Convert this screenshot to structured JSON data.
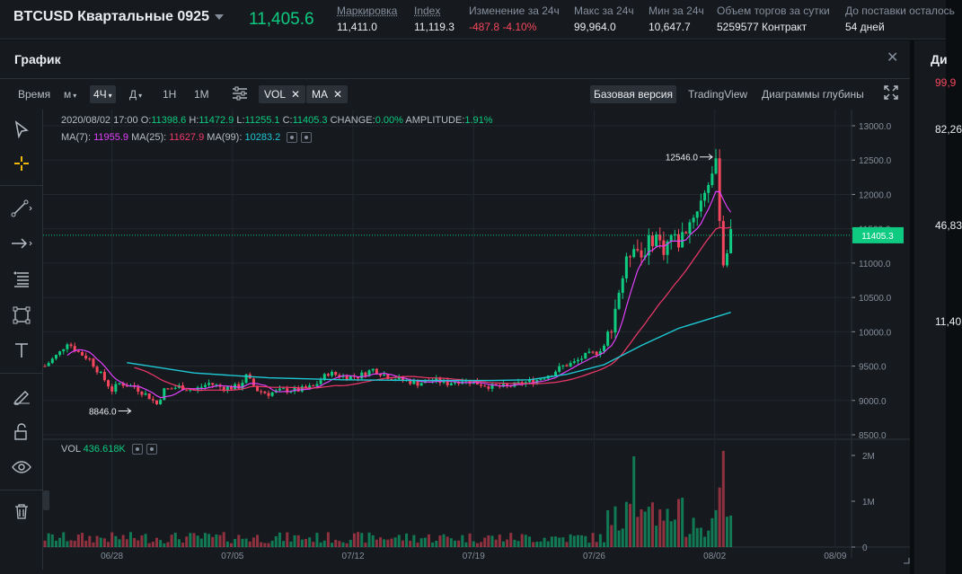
{
  "header": {
    "symbol": "BTCUSD Квартальные 0925",
    "last_price": "11,405.6",
    "stats": [
      {
        "label": "Маркировка",
        "value": "11,411.0",
        "underline": true,
        "color": "normal"
      },
      {
        "label": "Index",
        "value": "11,119.3",
        "underline": true,
        "color": "normal"
      },
      {
        "label": "Изменение за 24ч",
        "value": "-487.8 -4.10%",
        "underline": false,
        "color": "red"
      },
      {
        "label": "Макс за 24ч",
        "value": "99,964.0",
        "underline": false,
        "color": "normal"
      },
      {
        "label": "Мин за 24ч",
        "value": "10,647.7",
        "underline": false,
        "color": "normal"
      },
      {
        "label": "Объем торгов за сутки",
        "value": "5259577 Контракт",
        "underline": false,
        "color": "normal"
      },
      {
        "label": "До поставки осталось",
        "value": "54 дней",
        "underline": false,
        "color": "normal"
      }
    ]
  },
  "panel": {
    "title": "График",
    "close": "✕"
  },
  "right_panel": {
    "title": "Ди",
    "top_value": "99,9",
    "values": [
      "82,26",
      "46,83",
      "11,40"
    ]
  },
  "toolbar": {
    "time_label": "Время",
    "intervals": [
      {
        "label": "м",
        "dropdown": true,
        "active": false
      },
      {
        "label": "4Ч",
        "dropdown": true,
        "active": true
      },
      {
        "label": "Д",
        "dropdown": true,
        "active": false
      },
      {
        "label": "1Н",
        "dropdown": false,
        "active": false
      },
      {
        "label": "1М",
        "dropdown": false,
        "active": false
      }
    ],
    "indicators": [
      "VOL",
      "MA"
    ],
    "views": [
      {
        "label": "Базовая версия",
        "active": true
      },
      {
        "label": "TradingView",
        "active": false
      },
      {
        "label": "Диаграммы глубины",
        "active": false
      }
    ]
  },
  "left_tools": [
    "cursor-icon",
    "crosshair-icon",
    "trend-line-icon",
    "arrow-icon",
    "fib-lines-icon",
    "rectangle-icon",
    "text-icon",
    "magnet-pencil-icon",
    "lock-icon",
    "eye-icon",
    "trash-icon"
  ],
  "ohlc": {
    "date": "2020/08/02 17:00",
    "o_label": "O:",
    "o": "11398.6",
    "h_label": "H:",
    "h": "11472.9",
    "l_label": "L:",
    "l": "11255.1",
    "c_label": "C:",
    "c": "11405.3",
    "change_label": "CHANGE:",
    "change": "0.00%",
    "amp_label": "AMPLITUDE:",
    "amp": "1.91%"
  },
  "ma_legend": [
    {
      "label": "MA(7):",
      "value": "11955.9",
      "color": "#e040fb"
    },
    {
      "label": "MA(25):",
      "value": "11627.9",
      "color": "#f0386b"
    },
    {
      "label": "MA(99):",
      "value": "10283.2",
      "color": "#1ec8d4"
    }
  ],
  "vol_legend": {
    "label": "VOL",
    "value": "436.618K"
  },
  "colors": {
    "up": "#0ecb81",
    "down": "#f6465d",
    "ma7": "#e040fb",
    "ma25": "#f0386b",
    "ma99": "#1ec8d4",
    "axis": "#848e9c",
    "grid": "#22272e"
  },
  "chart_data": {
    "type": "candlestick",
    "x_ticks": [
      "06/28",
      "07/05",
      "07/12",
      "07/19",
      "07/26",
      "08/02",
      "08/09"
    ],
    "price_ticks": [
      "13000.0",
      "12500.0",
      "12000.0",
      "11500.0",
      "11000.0",
      "10500.0",
      "10000.0",
      "9500.0",
      "9000.0",
      "8500.0"
    ],
    "price_range": [
      8500,
      13000
    ],
    "volume_ticks": [
      "2M",
      "1M",
      "0"
    ],
    "volume_range": [
      0,
      2000000
    ],
    "current_price_label": "11405.3",
    "high_annotation": "12546.0",
    "low_annotation": "8846.0",
    "price_path": [
      [
        0,
        9500
      ],
      [
        4,
        9700
      ],
      [
        6,
        9850
      ],
      [
        9,
        9700
      ],
      [
        12,
        9600
      ],
      [
        16,
        9300
      ],
      [
        18,
        9150
      ],
      [
        20,
        9250
      ],
      [
        24,
        9200
      ],
      [
        28,
        9050
      ],
      [
        30,
        8946
      ],
      [
        32,
        9150
      ],
      [
        36,
        9200
      ],
      [
        40,
        9150
      ],
      [
        44,
        9250
      ],
      [
        48,
        9180
      ],
      [
        52,
        9200
      ],
      [
        54,
        9350
      ],
      [
        57,
        9150
      ],
      [
        60,
        9100
      ],
      [
        64,
        9150
      ],
      [
        68,
        9150
      ],
      [
        72,
        9200
      ],
      [
        76,
        9400
      ],
      [
        80,
        9350
      ],
      [
        84,
        9350
      ],
      [
        88,
        9450
      ],
      [
        92,
        9350
      ],
      [
        96,
        9300
      ],
      [
        100,
        9250
      ],
      [
        104,
        9300
      ],
      [
        108,
        9250
      ],
      [
        112,
        9300
      ],
      [
        116,
        9250
      ],
      [
        120,
        9200
      ],
      [
        124,
        9200
      ],
      [
        128,
        9250
      ],
      [
        132,
        9300
      ],
      [
        136,
        9400
      ],
      [
        139,
        9500
      ],
      [
        142,
        9550
      ],
      [
        145,
        9650
      ],
      [
        148,
        9700
      ],
      [
        150,
        9800
      ],
      [
        152,
        10100
      ],
      [
        154,
        10600
      ],
      [
        156,
        11000
      ],
      [
        158,
        11300
      ],
      [
        160,
        11100
      ],
      [
        162,
        11300
      ],
      [
        164,
        11400
      ],
      [
        166,
        11200
      ],
      [
        168,
        11400
      ],
      [
        170,
        11300
      ],
      [
        172,
        11500
      ],
      [
        174,
        11700
      ],
      [
        176,
        11900
      ],
      [
        178,
        12200
      ],
      [
        180,
        12420
      ],
      [
        182,
        11000
      ],
      [
        184,
        11405
      ]
    ],
    "ma99_path": [
      [
        22,
        9550
      ],
      [
        40,
        9400
      ],
      [
        60,
        9330
      ],
      [
        80,
        9300
      ],
      [
        100,
        9290
      ],
      [
        120,
        9290
      ],
      [
        130,
        9300
      ],
      [
        140,
        9380
      ],
      [
        150,
        9520
      ],
      [
        160,
        9800
      ],
      [
        170,
        10050
      ],
      [
        184,
        10283
      ]
    ],
    "candles_count": 185,
    "x_days": {
      "06/28": 24,
      "07/05": 66,
      "07/12": 108,
      "07/19": 150,
      "07/26": 192,
      "08/02": 234,
      "08/09": 276
    }
  }
}
